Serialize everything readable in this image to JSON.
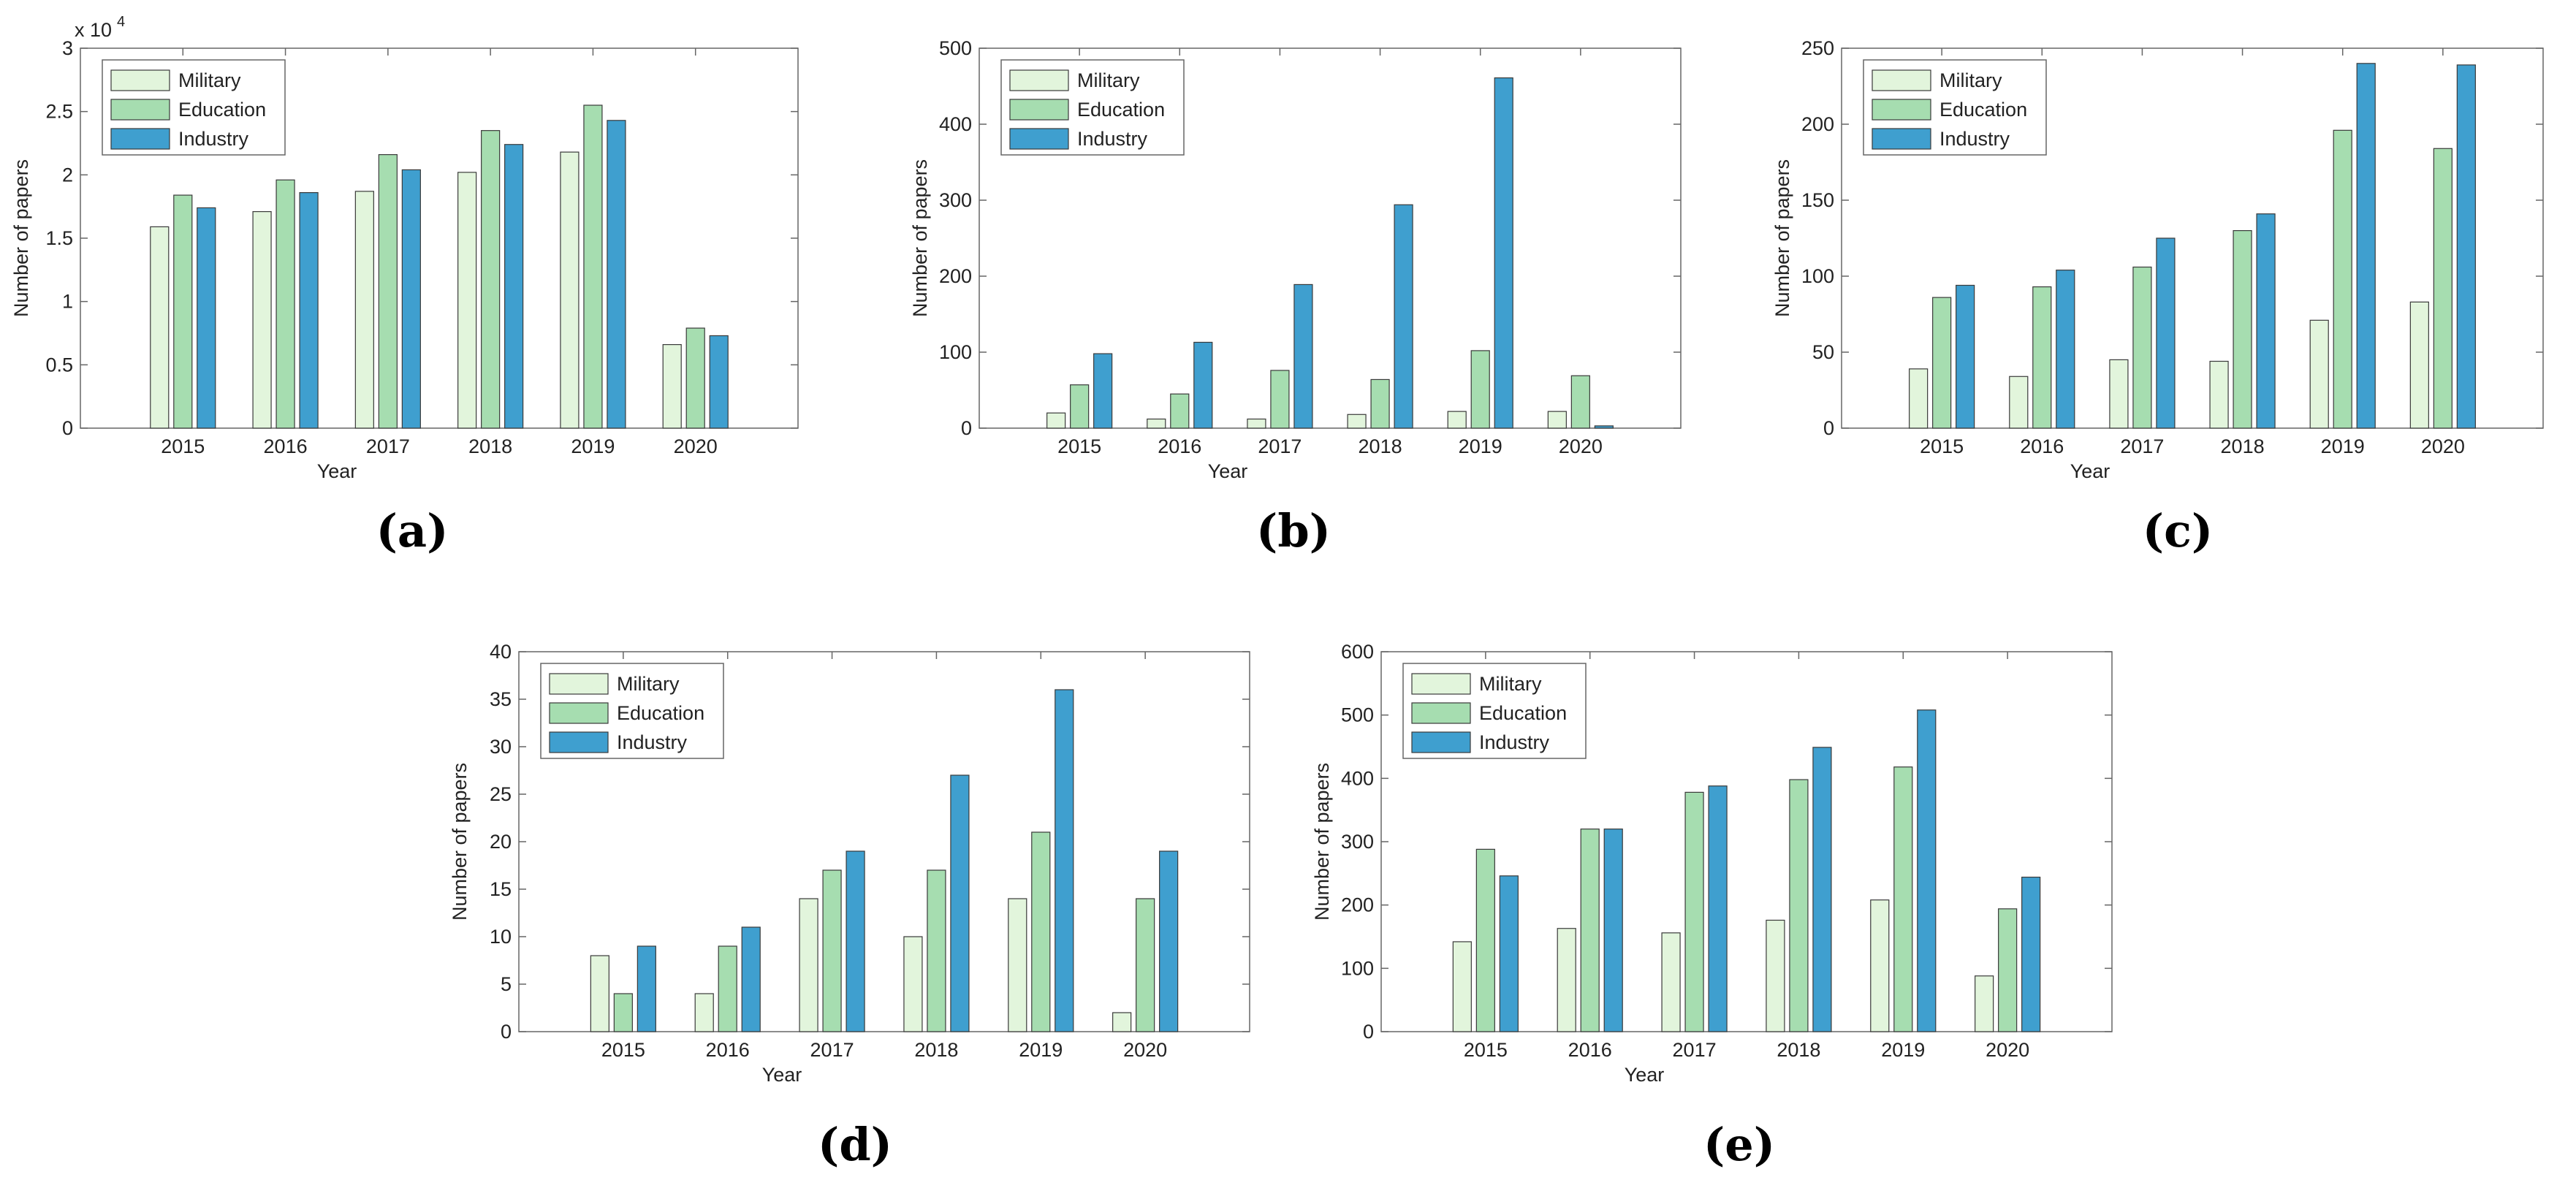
{
  "colors": {
    "military": "#e2f5dc",
    "education": "#a6ddb0",
    "industry": "#3f9fcf",
    "edge": "#3a3a3a"
  },
  "chart_data": [
    {
      "id": "a",
      "label": "(a)",
      "type": "bar",
      "categories": [
        "2015",
        "2016",
        "2017",
        "2018",
        "2019",
        "2020"
      ],
      "series": [
        {
          "name": "Military",
          "values": [
            1.59,
            1.71,
            1.87,
            2.02,
            2.18,
            0.66
          ]
        },
        {
          "name": "Education",
          "values": [
            1.84,
            1.96,
            2.16,
            2.35,
            2.55,
            0.79
          ]
        },
        {
          "name": "Industry",
          "values": [
            1.74,
            1.86,
            2.04,
            2.24,
            2.43,
            0.73
          ]
        }
      ],
      "xlabel": "Year",
      "ylabel": "Number of papers",
      "ylim": [
        0,
        3
      ],
      "yticks": [
        "0",
        "0.5",
        "1",
        "1.5",
        "2",
        "2.5",
        "3"
      ],
      "ytick_values": [
        0,
        0.5,
        1,
        1.5,
        2,
        2.5,
        3
      ],
      "exponent": "x 10",
      "exponent_power": "4",
      "legend_position": "top-left"
    },
    {
      "id": "b",
      "label": "(b)",
      "type": "bar",
      "categories": [
        "2015",
        "2016",
        "2017",
        "2018",
        "2019",
        "2020"
      ],
      "series": [
        {
          "name": "Military",
          "values": [
            20,
            12,
            12,
            18,
            22,
            22
          ]
        },
        {
          "name": "Education",
          "values": [
            57,
            45,
            76,
            64,
            102,
            69
          ]
        },
        {
          "name": "Industry",
          "values": [
            98,
            113,
            189,
            294,
            461,
            3
          ]
        }
      ],
      "xlabel": "Year",
      "ylabel": "Number of papers",
      "ylim": [
        0,
        500
      ],
      "yticks": [
        "0",
        "100",
        "200",
        "300",
        "400",
        "500"
      ],
      "ytick_values": [
        0,
        100,
        200,
        300,
        400,
        500
      ],
      "legend_position": "top-left"
    },
    {
      "id": "c",
      "label": "(c)",
      "type": "bar",
      "categories": [
        "2015",
        "2016",
        "2017",
        "2018",
        "2019",
        "2020"
      ],
      "series": [
        {
          "name": "Military",
          "values": [
            39,
            34,
            45,
            44,
            71,
            83
          ]
        },
        {
          "name": "Education",
          "values": [
            86,
            93,
            106,
            130,
            196,
            184
          ]
        },
        {
          "name": "Industry",
          "values": [
            94,
            104,
            125,
            141,
            240,
            239
          ]
        }
      ],
      "xlabel": "Year",
      "ylabel": "Number of papers",
      "ylim": [
        0,
        250
      ],
      "yticks": [
        "0",
        "50",
        "100",
        "150",
        "200",
        "250"
      ],
      "ytick_values": [
        0,
        50,
        100,
        150,
        200,
        250
      ],
      "legend_position": "top-left"
    },
    {
      "id": "d",
      "label": "(d)",
      "type": "bar",
      "categories": [
        "2015",
        "2016",
        "2017",
        "2018",
        "2019",
        "2020"
      ],
      "series": [
        {
          "name": "Military",
          "values": [
            8,
            4,
            14,
            10,
            14,
            2
          ]
        },
        {
          "name": "Education",
          "values": [
            4,
            9,
            17,
            17,
            21,
            14
          ]
        },
        {
          "name": "Industry",
          "values": [
            9,
            11,
            19,
            27,
            36,
            19
          ]
        }
      ],
      "xlabel": "Year",
      "ylabel": "Number of papers",
      "ylim": [
        0,
        40
      ],
      "yticks": [
        "0",
        "5",
        "10",
        "15",
        "20",
        "25",
        "30",
        "35",
        "40"
      ],
      "ytick_values": [
        0,
        5,
        10,
        15,
        20,
        25,
        30,
        35,
        40
      ],
      "legend_position": "top-left"
    },
    {
      "id": "e",
      "label": "(e)",
      "type": "bar",
      "categories": [
        "2015",
        "2016",
        "2017",
        "2018",
        "2019",
        "2020"
      ],
      "series": [
        {
          "name": "Military",
          "values": [
            142,
            163,
            156,
            176,
            208,
            88
          ]
        },
        {
          "name": "Education",
          "values": [
            288,
            320,
            378,
            398,
            418,
            194
          ]
        },
        {
          "name": "Industry",
          "values": [
            246,
            320,
            388,
            449,
            508,
            244
          ]
        }
      ],
      "xlabel": "Year",
      "ylabel": "Number of papers",
      "ylim": [
        0,
        600
      ],
      "yticks": [
        "0",
        "100",
        "200",
        "300",
        "400",
        "500",
        "600"
      ],
      "ytick_values": [
        0,
        100,
        200,
        300,
        400,
        500,
        600
      ],
      "legend_position": "top-left"
    }
  ]
}
